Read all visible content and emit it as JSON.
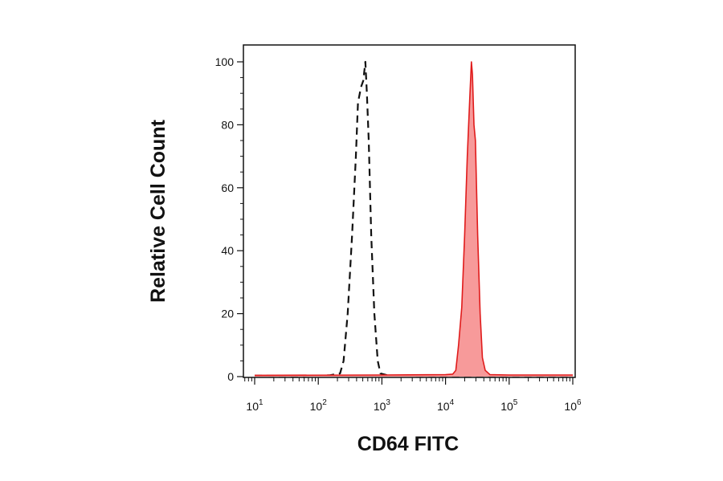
{
  "chart_data": {
    "type": "area",
    "xlabel": "CD64 FITC",
    "ylabel": "Relative Cell Count",
    "x_scale": "log",
    "xlim": [
      10,
      1000000
    ],
    "ylim": [
      0,
      100
    ],
    "grid": false,
    "legend": "none",
    "x_ticks": [
      {
        "base": "10",
        "exp": "1",
        "value": 10
      },
      {
        "base": "10",
        "exp": "2",
        "value": 100
      },
      {
        "base": "10",
        "exp": "3",
        "value": 1000
      },
      {
        "base": "10",
        "exp": "4",
        "value": 10000
      },
      {
        "base": "10",
        "exp": "5",
        "value": 100000
      },
      {
        "base": "10",
        "exp": "6",
        "value": 1000000
      }
    ],
    "y_ticks": [
      "0",
      "20",
      "40",
      "60",
      "80",
      "100"
    ],
    "series": [
      {
        "style": "dashed",
        "color": "#111111",
        "points": [
          [
            10,
            0.3
          ],
          [
            50,
            0.2
          ],
          [
            150,
            0.4
          ],
          [
            220,
            1
          ],
          [
            250,
            5
          ],
          [
            290,
            20
          ],
          [
            340,
            45
          ],
          [
            390,
            70
          ],
          [
            420,
            87
          ],
          [
            470,
            92
          ],
          [
            510,
            94
          ],
          [
            550,
            100
          ],
          [
            580,
            90
          ],
          [
            620,
            75
          ],
          [
            680,
            45
          ],
          [
            760,
            20
          ],
          [
            860,
            5
          ],
          [
            950,
            1
          ],
          [
            1300,
            0.3
          ],
          [
            10000,
            0.2
          ],
          [
            1000000,
            0.2
          ]
        ]
      },
      {
        "style": "filled",
        "color": "#e01b1b",
        "fill": "#f79a9a",
        "points": [
          [
            10,
            0.4
          ],
          [
            1000,
            0.5
          ],
          [
            10000,
            0.6
          ],
          [
            13000,
            0.8
          ],
          [
            14500,
            2
          ],
          [
            16000,
            10
          ],
          [
            18000,
            22
          ],
          [
            20000,
            45
          ],
          [
            22000,
            70
          ],
          [
            24000,
            88
          ],
          [
            25500,
            100
          ],
          [
            26500,
            96
          ],
          [
            28000,
            80
          ],
          [
            29500,
            75
          ],
          [
            32000,
            45
          ],
          [
            35000,
            20
          ],
          [
            38000,
            6
          ],
          [
            42000,
            2
          ],
          [
            50000,
            0.6
          ],
          [
            100000,
            0.5
          ],
          [
            1000000,
            0.5
          ]
        ]
      }
    ]
  }
}
